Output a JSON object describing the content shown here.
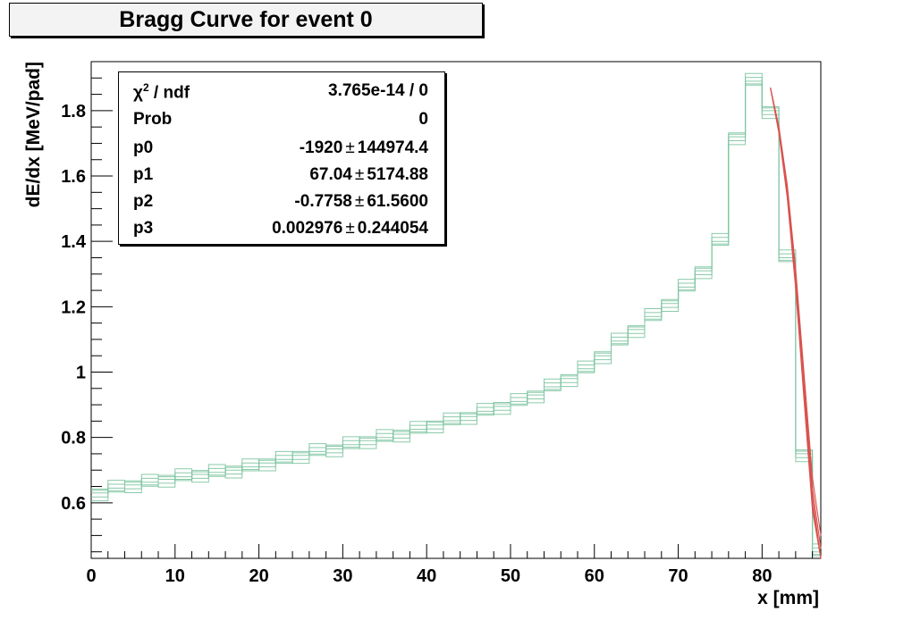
{
  "chart_data": {
    "type": "line",
    "title": "Bragg Curve for event 0",
    "xlabel": "x [mm]",
    "ylabel": "dE/dx [MeV/pad]",
    "xlim": [
      0,
      87
    ],
    "ylim": [
      0.43,
      1.95
    ],
    "x_ticks": [
      0,
      10,
      20,
      30,
      40,
      50,
      60,
      70,
      80
    ],
    "y_ticks": [
      0.6,
      0.8,
      1,
      1.2,
      1.4,
      1.6,
      1.8
    ],
    "grid": false,
    "series": [
      {
        "kind": "histogram",
        "color": "#7dc4a0",
        "bin_width": 2,
        "x": [
          1,
          3,
          5,
          7,
          9,
          11,
          13,
          15,
          17,
          19,
          21,
          23,
          25,
          27,
          29,
          31,
          33,
          35,
          37,
          39,
          41,
          43,
          45,
          47,
          49,
          51,
          53,
          55,
          57,
          59,
          61,
          63,
          65,
          67,
          69,
          71,
          73,
          75,
          77,
          79,
          81,
          83,
          85,
          87
        ],
        "values": [
          0.63,
          0.645,
          0.655,
          0.663,
          0.672,
          0.68,
          0.687,
          0.693,
          0.7,
          0.71,
          0.722,
          0.733,
          0.745,
          0.757,
          0.765,
          0.778,
          0.79,
          0.8,
          0.81,
          0.825,
          0.838,
          0.851,
          0.864,
          0.88,
          0.895,
          0.91,
          0.93,
          0.955,
          0.98,
          1.01,
          1.05,
          1.095,
          1.13,
          1.17,
          1.21,
          1.26,
          1.31,
          1.4,
          1.72,
          1.89,
          1.8,
          1.35,
          0.75,
          0.45
        ]
      },
      {
        "kind": "fit",
        "color": "#d9534f",
        "x": [
          81,
          82,
          83,
          84,
          85,
          86,
          87
        ],
        "values": [
          1.87,
          1.74,
          1.55,
          1.28,
          0.95,
          0.62,
          0.43
        ]
      }
    ]
  },
  "stats": {
    "rows": [
      {
        "name": "χ",
        "name_sup": "2",
        "name_rest": " / ndf",
        "value": "3.765e-14 / 0",
        "error": ""
      },
      {
        "name": "Prob",
        "name_sup": "",
        "name_rest": "",
        "value": "0",
        "error": ""
      },
      {
        "name": "p0",
        "name_sup": "",
        "name_rest": "",
        "value": "-1920",
        "error": "144974.4"
      },
      {
        "name": "p1",
        "name_sup": "",
        "name_rest": "",
        "value": "67.04",
        "error": "5174.88"
      },
      {
        "name": "p2",
        "name_sup": "",
        "name_rest": "",
        "value": "-0.7758",
        "error": "61.5600"
      },
      {
        "name": "p3",
        "name_sup": "",
        "name_rest": "",
        "value": "0.002976",
        "error": "0.244054"
      }
    ],
    "pm": "±"
  }
}
